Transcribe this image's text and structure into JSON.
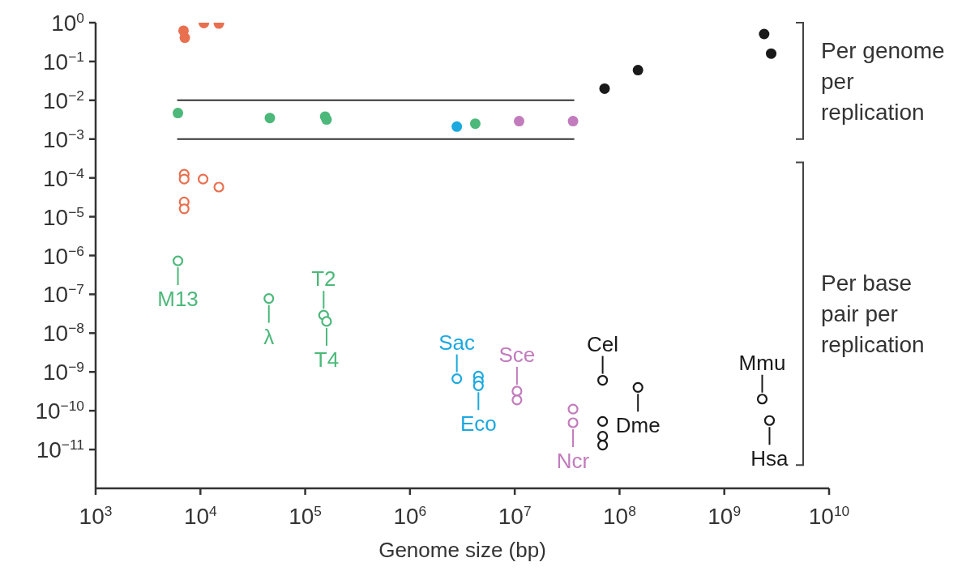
{
  "chart_data": {
    "type": "scatter",
    "xlabel": "Genome size (bp)",
    "log": "xy",
    "marker": "circle",
    "xlim": [
      1000,
      10000000000
    ],
    "xticks": [
      {
        "value": 1000,
        "label": "10$^{3}$"
      },
      {
        "value": 10000,
        "label": "10$^{4}$"
      },
      {
        "value": 100000,
        "label": "10$^{5}$"
      },
      {
        "value": 1000000,
        "label": "10$^{6}$"
      },
      {
        "value": 10000000,
        "label": "10$^{7}$"
      },
      {
        "value": 100000000,
        "label": "10$^{8}$"
      },
      {
        "value": 1000000000,
        "label": "10$^{9}$"
      },
      {
        "value": 10000000000,
        "label": "10$^{10}$"
      }
    ],
    "ylim": [
      1e-12,
      1
    ],
    "yticks": [
      {
        "value": 1,
        "label": "10$^{0}$"
      },
      {
        "value": 0.1,
        "label": "10$^{−1}$"
      },
      {
        "value": 0.01,
        "label": "10$^{−2}$"
      },
      {
        "value": 0.001,
        "label": "10$^{−3}$"
      },
      {
        "value": 0.0001,
        "label": "10$^{−4}$"
      },
      {
        "value": 1e-05,
        "label": "10$^{−5}$"
      },
      {
        "value": 1e-06,
        "label": "10$^{−6}$"
      },
      {
        "value": 1e-07,
        "label": "10$^{−7}$"
      },
      {
        "value": 1e-08,
        "label": "10$^{−8}$"
      },
      {
        "value": 1e-09,
        "label": "10$^{−9}$"
      },
      {
        "value": 1e-10,
        "label": "10$^{−10}$"
      },
      {
        "value": 1e-11,
        "label": "10$^{−11}$"
      }
    ],
    "series": [
      {
        "color": "#e8704f",
        "x": [
          6900,
          7100,
          10800,
          15000
        ],
        "values": [
          0.62,
          0.41,
          0.98,
          0.95
        ]
      },
      {
        "color": "#e8704f",
        "x": [
          7000,
          7000,
          10600,
          15000,
          7000,
          7000
        ],
        "values": [
          0.000124,
          9.3e-05,
          9.3e-05,
          5.8e-05,
          2.4e-05,
          1.6e-05
        ]
      },
      {
        "color": "#4cb87a",
        "x": [
          6100,
          46000,
          155000,
          160000,
          4200000
        ],
        "values": [
          0.0047,
          0.0035,
          0.0038,
          0.0032,
          0.0025
        ]
      },
      {
        "color": "#4cb87a",
        "x": [
          6100,
          45000,
          150000,
          160000
        ],
        "values": [
          7.3e-07,
          7.8e-08,
          2.9e-08,
          2e-08
        ]
      },
      {
        "color": "#1ba9e0",
        "x": [
          2800000
        ],
        "values": [
          0.0021
        ]
      },
      {
        "color": "#1ba9e0",
        "x": [
          2800000,
          4500000,
          4500000,
          4500000
        ],
        "values": [
          6.7e-10,
          7.8e-10,
          5.8e-10,
          4.4e-10
        ]
      },
      {
        "color": "#c27bbd",
        "x": [
          11000000,
          36000000
        ],
        "values": [
          0.0029,
          0.0029
        ]
      },
      {
        "color": "#c27bbd",
        "x": [
          10500000,
          10500000,
          36000000,
          36000000
        ],
        "values": [
          3.2e-10,
          1.9e-10,
          1.1e-10,
          4.9e-11
        ]
      },
      {
        "color": "#1a1a1a",
        "x": [
          72000000,
          150000000,
          2400000000,
          2800000000
        ],
        "values": [
          0.02,
          0.06,
          0.51,
          0.16
        ]
      },
      {
        "color": "#1a1a1a",
        "x": [
          69000000,
          69000000,
          69000000,
          69000000,
          150000000,
          2300000000,
          2700000000
        ],
        "values": [
          6.1e-10,
          5.3e-11,
          2.2e-11,
          1.3e-11,
          4e-10,
          2e-10,
          5.6e-11
        ]
      },
      {
        "type": "line",
        "marker": "none",
        "color": "#333333",
        "x": [
          6000,
          37000000
        ],
        "values": [
          0.01,
          0.01
        ]
      },
      {
        "type": "line",
        "marker": "none",
        "color": "#333333",
        "x": [
          6000,
          37000000
        ],
        "values": [
          0.001,
          0.001
        ]
      }
    ],
    "annotations": [
      {
        "text": "M13",
        "x": 6100,
        "y": 7.3e-07
      },
      {
        "text": "λ",
        "x": 45000,
        "y": 7.8e-08
      },
      {
        "text": "T2",
        "x": 150000,
        "y": 2.9e-08
      },
      {
        "text": "T4",
        "x": 160000,
        "y": 2e-08
      },
      {
        "text": "Sac",
        "x": 2800000,
        "y": 6.7e-10
      },
      {
        "text": "Eco",
        "x": 4500000,
        "y": 4.4e-10
      },
      {
        "text": "Sce",
        "x": 10500000,
        "y": 3.2e-10
      },
      {
        "text": "Ncr",
        "x": 36000000,
        "y": 4.9e-11
      },
      {
        "text": "Cel",
        "x": 69000000,
        "y": 6.1e-10
      },
      {
        "text": "Dme",
        "x": 150000000,
        "y": 4e-10
      },
      {
        "text": "Mmu",
        "x": 2300000000,
        "y": 2e-10
      },
      {
        "text": "Hsa",
        "x": 2700000000,
        "y": 5.6e-11
      },
      "Per genome per replication",
      "Per base pair per replication"
    ]
  }
}
